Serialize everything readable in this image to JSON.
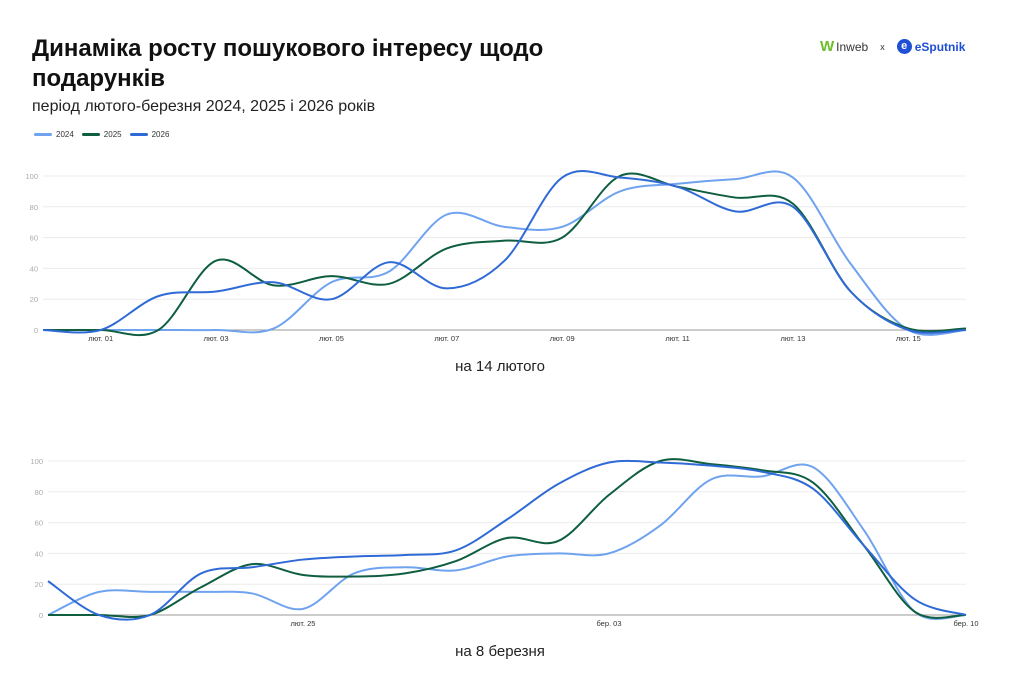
{
  "title": "Динаміка росту пошукового інтересу щодо подарунків",
  "subtitle": "період лютого-березня 2024, 2025 і 2026 років",
  "logos": {
    "left": "Inweb",
    "separator": "x",
    "right": "eSputnik"
  },
  "legend": [
    {
      "name": "2024",
      "color": "#6fa3ef"
    },
    {
      "name": "2025",
      "color": "#0e5e3f"
    },
    {
      "name": "2026",
      "color": "#2f6ad6"
    }
  ],
  "chart_data": [
    {
      "type": "line",
      "caption": "на 14 лютого",
      "x": [
        "01-31",
        "02-01",
        "02-02",
        "02-03",
        "02-04",
        "02-05",
        "02-06",
        "02-07",
        "02-08",
        "02-09",
        "02-10",
        "02-11",
        "02-12",
        "02-13",
        "02-14",
        "02-15",
        "02-16"
      ],
      "x_ticks": [
        {
          "index": 1,
          "label": "лют. 01"
        },
        {
          "index": 3,
          "label": "лют. 03"
        },
        {
          "index": 5,
          "label": "лют. 05"
        },
        {
          "index": 7,
          "label": "лют. 07"
        },
        {
          "index": 9,
          "label": "лют. 09"
        },
        {
          "index": 11,
          "label": "лют. 11"
        },
        {
          "index": 13,
          "label": "лют. 13"
        },
        {
          "index": 15,
          "label": "лют. 15"
        }
      ],
      "y_ticks": [
        0,
        20,
        40,
        60,
        80,
        100
      ],
      "ylim": [
        0,
        100
      ],
      "grid": true,
      "series": [
        {
          "name": "2024",
          "values": [
            0,
            0,
            0,
            0,
            1,
            31,
            38,
            75,
            67,
            67,
            90,
            95,
            98,
            99,
            43,
            0,
            0
          ]
        },
        {
          "name": "2025",
          "values": [
            0,
            0,
            0,
            45,
            29,
            35,
            30,
            53,
            58,
            60,
            100,
            93,
            86,
            82,
            25,
            1,
            1
          ]
        },
        {
          "name": "2026",
          "values": [
            0,
            0,
            22,
            25,
            31,
            20,
            44,
            27,
            45,
            99,
            99,
            93,
            77,
            80,
            25,
            0,
            0
          ]
        }
      ]
    },
    {
      "type": "line",
      "caption": "на 8 березня",
      "x": [
        "02-20",
        "02-21",
        "02-22",
        "02-23",
        "02-24",
        "02-25",
        "02-26",
        "02-27",
        "02-28",
        "03-01",
        "03-02",
        "03-03",
        "03-04",
        "03-05",
        "03-06",
        "03-07",
        "03-08",
        "03-09",
        "03-10"
      ],
      "x_ticks": [
        {
          "index": 5,
          "label": "лют. 25"
        },
        {
          "index": 11,
          "label": "бер. 03"
        },
        {
          "index": 18,
          "label": "бер. 10"
        }
      ],
      "y_ticks": [
        0,
        20,
        40,
        60,
        80,
        100
      ],
      "ylim": [
        0,
        100
      ],
      "grid": true,
      "series": [
        {
          "name": "2024",
          "values": [
            0,
            15,
            15,
            15,
            14,
            4,
            27,
            31,
            29,
            38,
            40,
            40,
            58,
            88,
            90,
            96,
            55,
            2,
            0
          ]
        },
        {
          "name": "2025",
          "values": [
            0,
            0,
            0,
            18,
            33,
            26,
            25,
            27,
            35,
            50,
            48,
            78,
            100,
            98,
            94,
            86,
            45,
            2,
            0
          ]
        },
        {
          "name": "2026",
          "values": [
            22,
            0,
            0,
            27,
            31,
            36,
            38,
            39,
            42,
            62,
            85,
            99,
            99,
            97,
            93,
            82,
            45,
            10,
            0
          ]
        }
      ]
    }
  ]
}
